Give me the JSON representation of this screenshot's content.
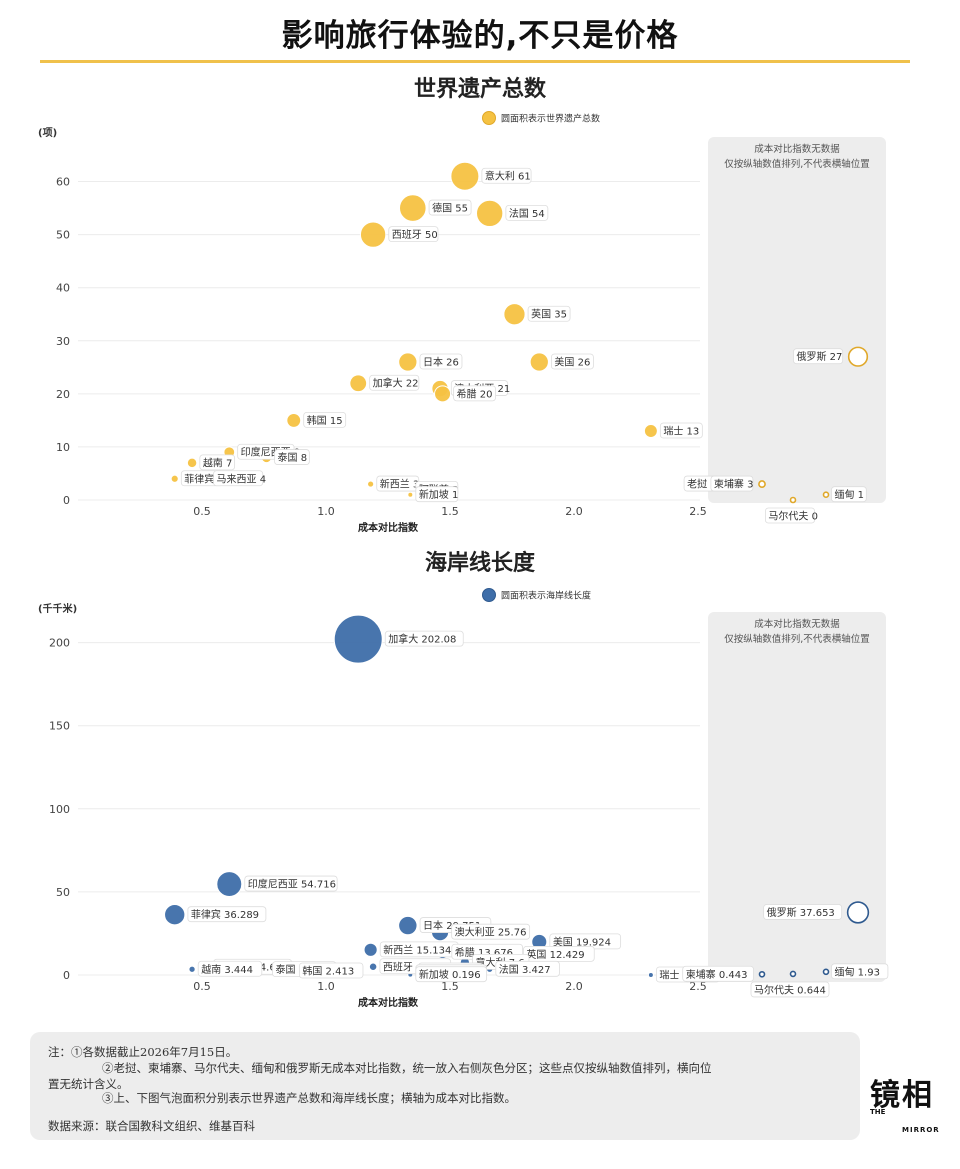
{
  "page": {
    "title": "影响旅行体验的,不只是价格",
    "notes": [
      "注：①各数据截止2026年7月15日。",
      "②老挝、柬埔寨、马尔代夫、缅甸和俄罗斯无成本对比指数，统一放入右侧灰色分区；这些点仅按纵轴数值排列，横向位",
      "置无统计含义。",
      "③上、下图气泡面积分别表示世界遗产总数和海岸线长度；横轴为成本对比指数。",
      "数据来源：联合国教科文组织、维基百科"
    ],
    "logo": {
      "cn": "镜相",
      "en1": "THE",
      "en2": "MIRROR"
    }
  },
  "colors": {
    "heritage": "#f5c242",
    "heritage_stroke": "#e0a82a",
    "coast": "#3e6ea9",
    "coast_stroke": "#2f5a8f",
    "accent": "#f0c14b",
    "panel": "#ededed"
  },
  "chart_data": [
    {
      "type": "scatter",
      "title": "世界遗产总数",
      "unit": "(项)",
      "xlabel": "成本对比指数",
      "legend": "圆面积表示世界遗产总数",
      "xlim": [
        0,
        2.5
      ],
      "xticks": [
        "0.5",
        "1.0",
        "1.5",
        "2.0",
        "2.5"
      ],
      "ylim": [
        0,
        65
      ],
      "yticks": [
        "0",
        "10",
        "20",
        "30",
        "40",
        "50",
        "60"
      ],
      "side_panel": {
        "title": "成本对比指数无数据",
        "subtitle": "仅按纵轴数值排列,不代表横轴位置"
      },
      "points": [
        {
          "name": "意大利",
          "x": 1.56,
          "y": 61,
          "label": "意大利 61"
        },
        {
          "name": "德国",
          "x": 1.35,
          "y": 55,
          "label": "德国 55"
        },
        {
          "name": "法国",
          "x": 1.66,
          "y": 54,
          "label": "法国 54"
        },
        {
          "name": "西班牙",
          "x": 1.19,
          "y": 50,
          "label": "西班牙 50"
        },
        {
          "name": "英国",
          "x": 1.76,
          "y": 35,
          "label": "英国 35"
        },
        {
          "name": "日本",
          "x": 1.33,
          "y": 26,
          "label": "日本 26"
        },
        {
          "name": "美国",
          "x": 1.86,
          "y": 26,
          "label": "美国 26"
        },
        {
          "name": "加拿大",
          "x": 1.13,
          "y": 22,
          "label": "加拿大 22"
        },
        {
          "name": "澳大利亚",
          "x": 1.46,
          "y": 21,
          "label": "澳大利亚 21"
        },
        {
          "name": "希腊",
          "x": 1.47,
          "y": 20,
          "label": "希腊 20"
        },
        {
          "name": "韩国",
          "x": 0.87,
          "y": 15,
          "label": "韩国 15"
        },
        {
          "name": "瑞士",
          "x": 2.31,
          "y": 13,
          "label": "瑞士 13"
        },
        {
          "name": "印度尼西亚",
          "x": 0.61,
          "y": 9,
          "label": "印度尼西亚 9"
        },
        {
          "name": "泰国",
          "x": 0.76,
          "y": 8,
          "label": "泰国 8"
        },
        {
          "name": "越南",
          "x": 0.46,
          "y": 7,
          "label": "越南 7"
        },
        {
          "name": "菲律宾",
          "x": 0.39,
          "y": 4,
          "label": "菲律宾 4"
        },
        {
          "name": "马来西亚",
          "x": 0.52,
          "y": 4,
          "label": "马来西亚 4"
        },
        {
          "name": "新西兰",
          "x": 1.18,
          "y": 3,
          "label": "新西兰 3"
        },
        {
          "name": "阿联酋",
          "x": 1.34,
          "y": 2,
          "label": "阿联酋 2"
        },
        {
          "name": "新加坡",
          "x": 1.34,
          "y": 1,
          "label": "新加坡 1"
        }
      ],
      "nodata_points": [
        {
          "name": "俄罗斯",
          "y": 27,
          "label": "俄罗斯 27"
        },
        {
          "name": "老挝",
          "y": 3,
          "label": "老挝 3"
        },
        {
          "name": "柬埔寨",
          "y": 3,
          "label": "柬埔寨 3"
        },
        {
          "name": "马尔代夫",
          "y": 0,
          "label": "马尔代夫 0"
        },
        {
          "name": "缅甸",
          "y": 1,
          "label": "缅甸 1"
        }
      ]
    },
    {
      "type": "scatter",
      "title": "海岸线长度",
      "unit": "(千千米)",
      "xlabel": "成本对比指数",
      "legend": "圆面积表示海岸线长度",
      "xlim": [
        0,
        2.5
      ],
      "xticks": [
        "0.5",
        "1.0",
        "1.5",
        "2.0",
        "2.5"
      ],
      "ylim": [
        0,
        210
      ],
      "yticks": [
        "0",
        "50",
        "100",
        "150",
        "200"
      ],
      "side_panel": {
        "title": "成本对比指数无数据",
        "subtitle": "仅按纵轴数值排列,不代表横轴位置"
      },
      "points": [
        {
          "name": "加拿大",
          "x": 1.13,
          "y": 202.08,
          "label": "加拿大 202.08"
        },
        {
          "name": "印度尼西亚",
          "x": 0.61,
          "y": 54.716,
          "label": "印度尼西亚 54.716"
        },
        {
          "name": "菲律宾",
          "x": 0.39,
          "y": 36.289,
          "label": "菲律宾 36.289"
        },
        {
          "name": "日本",
          "x": 1.33,
          "y": 29.751,
          "label": "日本 29.751"
        },
        {
          "name": "澳大利亚",
          "x": 1.46,
          "y": 25.76,
          "label": "澳大利亚 25.76"
        },
        {
          "name": "美国",
          "x": 1.86,
          "y": 19.924,
          "label": "美国 19.924"
        },
        {
          "name": "新西兰",
          "x": 1.18,
          "y": 15.134,
          "label": "新西兰 15.134"
        },
        {
          "name": "希腊",
          "x": 1.47,
          "y": 13.676,
          "label": "希腊 13.676"
        },
        {
          "name": "英国",
          "x": 1.76,
          "y": 12.429,
          "label": "英国 12.429"
        },
        {
          "name": "意大利",
          "x": 1.56,
          "y": 7.6,
          "label": "意大利 7.6"
        },
        {
          "name": "西班牙",
          "x": 1.19,
          "y": 4.964,
          "label": "西班牙 4.964"
        },
        {
          "name": "马来西亚",
          "x": 0.52,
          "y": 4.675,
          "label": "马来西亚 4.675"
        },
        {
          "name": "越南",
          "x": 0.46,
          "y": 3.444,
          "label": "越南 3.444"
        },
        {
          "name": "法国",
          "x": 1.66,
          "y": 3.427,
          "label": "法国 3.427"
        },
        {
          "name": "泰国",
          "x": 0.76,
          "y": 3.219,
          "label": "泰国 3.219"
        },
        {
          "name": "韩国",
          "x": 0.87,
          "y": 2.413,
          "label": "韩国 2.413"
        },
        {
          "name": "德国",
          "x": 1.35,
          "y": 2.389,
          "label": "德国 2.389"
        },
        {
          "name": "阿联酋",
          "x": 1.34,
          "y": 1.318,
          "label": "阿联酋 1.318"
        },
        {
          "name": "新加坡",
          "x": 1.34,
          "y": 0.196,
          "label": "新加坡 0.196"
        },
        {
          "name": "瑞士",
          "x": 2.31,
          "y": 0,
          "label": "瑞士 0"
        }
      ],
      "nodata_points": [
        {
          "name": "俄罗斯",
          "y": 37.653,
          "label": "俄罗斯 37.653"
        },
        {
          "name": "老挝",
          "y": 0,
          "label": "老挝 0"
        },
        {
          "name": "柬埔寨",
          "y": 0.443,
          "label": "柬埔寨 0.443"
        },
        {
          "name": "马尔代夫",
          "y": 0.644,
          "label": "马尔代夫 0.644"
        },
        {
          "name": "缅甸",
          "y": 1.93,
          "label": "缅甸 1.93"
        }
      ]
    }
  ]
}
